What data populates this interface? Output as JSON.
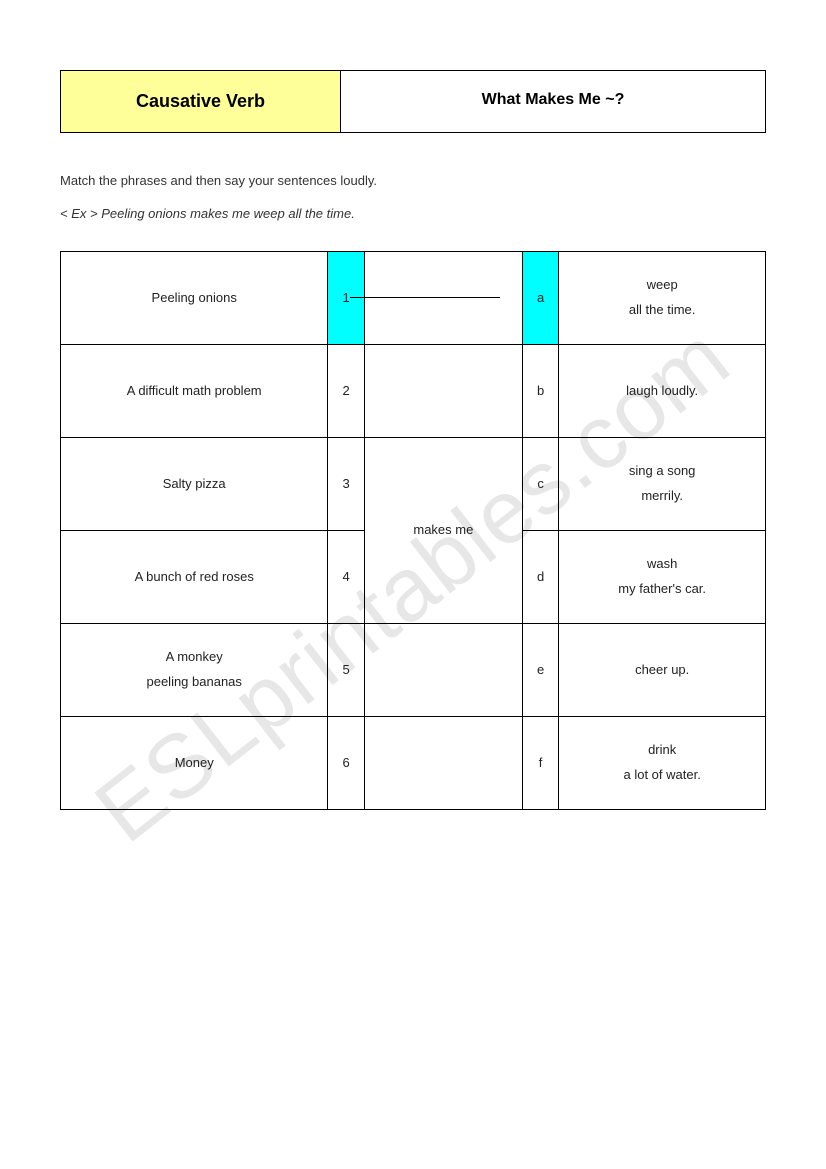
{
  "header": {
    "left": "Causative Verb",
    "right": "What Makes Me ~?"
  },
  "instructions": "Match the phrases and then say your sentences loudly.",
  "example": "< Ex > Peeling onions makes me weep all the time.",
  "middle_text": "makes me",
  "rows": [
    {
      "left": "Peeling onions",
      "num": "1",
      "letter": "a",
      "right": "weep\nall the time."
    },
    {
      "left": "A difficult math problem",
      "num": "2",
      "letter": "b",
      "right": "laugh loudly."
    },
    {
      "left": "Salty pizza",
      "num": "3",
      "letter": "c",
      "right": "sing a song\nmerrily."
    },
    {
      "left": "A bunch of red roses",
      "num": "4",
      "letter": "d",
      "right": "wash\nmy father's car."
    },
    {
      "left": "A monkey\npeeling bananas",
      "num": "5",
      "letter": "e",
      "right": "cheer up."
    },
    {
      "left": "Money",
      "num": "6",
      "letter": "f",
      "right": "drink\na lot of water."
    }
  ],
  "colors": {
    "highlight": "#00ffff",
    "header_bg": "#ffff99",
    "border": "#000000",
    "watermark": "rgba(120,120,120,0.18)"
  },
  "watermark": "ESLprintables.com"
}
